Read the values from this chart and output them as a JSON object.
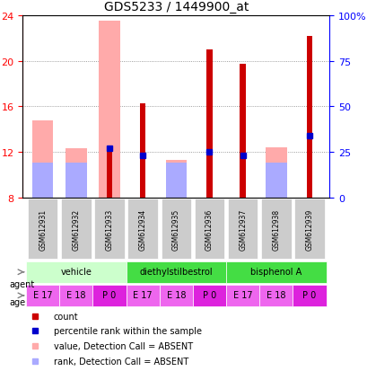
{
  "title": "GDS5233 / 1449900_at",
  "samples": [
    "GSM612931",
    "GSM612932",
    "GSM612933",
    "GSM612934",
    "GSM612935",
    "GSM612936",
    "GSM612937",
    "GSM612938",
    "GSM612939"
  ],
  "ylim_left": [
    8,
    24
  ],
  "ylim_right": [
    0,
    100
  ],
  "yticks_left": [
    8,
    12,
    16,
    20,
    24
  ],
  "yticks_right": [
    0,
    25,
    50,
    75,
    100
  ],
  "ytick_labels_right": [
    "0",
    "25",
    "50",
    "75",
    "100%"
  ],
  "count_values": [
    null,
    null,
    12.3,
    16.3,
    null,
    21.0,
    19.7,
    null,
    22.2
  ],
  "rank_values": [
    null,
    null,
    12.3,
    11.7,
    null,
    12.0,
    11.7,
    null,
    13.4
  ],
  "absent_value_values": [
    14.8,
    12.3,
    23.5,
    null,
    11.3,
    null,
    null,
    12.4,
    null
  ],
  "absent_rank_values": [
    11.1,
    11.1,
    null,
    null,
    11.1,
    null,
    null,
    11.1,
    null
  ],
  "count_color": "#cc0000",
  "rank_color": "#0000cc",
  "absent_value_color": "#ffaaaa",
  "absent_rank_color": "#aaaaff",
  "agent_groups": [
    {
      "label": "vehicle",
      "start": 0,
      "end": 3,
      "color": "#ccffcc"
    },
    {
      "label": "diethylstilbestrol",
      "start": 3,
      "end": 6,
      "color": "#44dd44"
    },
    {
      "label": "bisphenol A",
      "start": 6,
      "end": 9,
      "color": "#44dd44"
    }
  ],
  "age_labels": [
    "E 17",
    "E 18",
    "P 0",
    "E 17",
    "E 18",
    "P 0",
    "E 17",
    "E 18",
    "P 0"
  ],
  "age_colors": [
    "#ee66ee",
    "#ee66ee",
    "#dd22dd",
    "#ee66ee",
    "#ee66ee",
    "#dd22dd",
    "#ee66ee",
    "#ee66ee",
    "#dd22dd"
  ],
  "legend_items": [
    {
      "label": "count",
      "color": "#cc0000",
      "marker": "s"
    },
    {
      "label": "percentile rank within the sample",
      "color": "#0000cc",
      "marker": "s"
    },
    {
      "label": "value, Detection Call = ABSENT",
      "color": "#ffaaaa",
      "marker": "s"
    },
    {
      "label": "rank, Detection Call = ABSENT",
      "color": "#aaaaff",
      "marker": "s"
    }
  ],
  "bar_width": 0.35,
  "base_value": 8
}
